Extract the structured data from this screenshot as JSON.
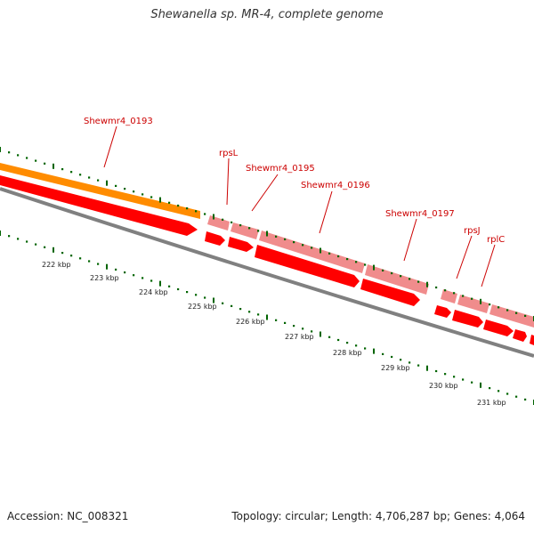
{
  "title": "Shewanella sp. MR-4, complete genome",
  "footer": {
    "accession": "Accession: NC_008321",
    "summary": "Topology: circular; Length: 4,706,287 bp; Genes: 4,064"
  },
  "colors": {
    "backbone": "#808080",
    "gene_forward": "#ff0000",
    "gene_cds_light": "#f08c8c",
    "gene_orange": "#ff8c00",
    "tick_dark": "#006400",
    "label_red": "#cc0000"
  },
  "genes": [
    {
      "name": "Shewmr4_0193",
      "feature": "orange-bar"
    },
    {
      "name": "rpsL",
      "feature": "light-segment"
    },
    {
      "name": "Shewmr4_0195",
      "feature": "light-segment"
    },
    {
      "name": "Shewmr4_0196",
      "feature": "light-segment"
    },
    {
      "name": "Shewmr4_0197",
      "feature": "light-segment"
    },
    {
      "name": "rpsJ",
      "feature": "light-segment"
    },
    {
      "name": "rplC",
      "feature": "light-segment"
    }
  ],
  "scale_ticks": [
    "222 kbp",
    "223 kbp",
    "224 kbp",
    "225 kbp",
    "226 kbp",
    "227 kbp",
    "228 kbp",
    "229 kbp",
    "230 kbp",
    "231 kbp"
  ]
}
